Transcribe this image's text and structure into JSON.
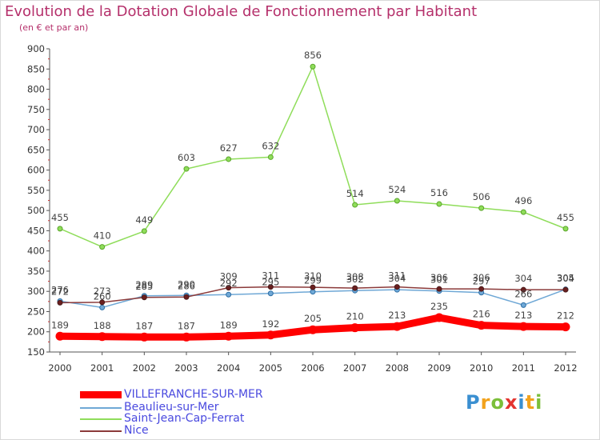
{
  "title": "Evolution de la Dotation Globale de Fonctionnement par Habitant",
  "subtitle": "(en € et par an)",
  "logo": {
    "text": "Proxiti",
    "letters": [
      {
        "ch": "P",
        "color": "#3a8fd1"
      },
      {
        "ch": "r",
        "color": "#f2a21c"
      },
      {
        "ch": "o",
        "color": "#7bbf3a"
      },
      {
        "ch": "x",
        "color": "#e3342f"
      },
      {
        "ch": "i",
        "color": "#3a8fd1"
      },
      {
        "ch": "t",
        "color": "#f2a21c"
      },
      {
        "ch": "i",
        "color": "#7bbf3a"
      }
    ]
  },
  "chart_data": {
    "type": "line",
    "title": "Evolution de la Dotation Globale de Fonctionnement par Habitant",
    "ylabel": "(en € et par an)",
    "xlabel": "",
    "ylim": [
      150,
      900
    ],
    "yticks": [
      150,
      200,
      250,
      300,
      350,
      400,
      450,
      500,
      550,
      600,
      650,
      700,
      750,
      800,
      850,
      900
    ],
    "categories": [
      "2000",
      "2001",
      "2002",
      "2003",
      "2004",
      "2005",
      "2006",
      "2007",
      "2008",
      "2009",
      "2010",
      "2011",
      "2012"
    ],
    "grid": false,
    "series": [
      {
        "name": "VILLEFRANCHE-SUR-MER",
        "color": "#ff0000",
        "values": [
          189,
          188,
          187,
          187,
          189,
          192,
          205,
          210,
          213,
          235,
          216,
          213,
          212
        ]
      },
      {
        "name": "Beaulieu-sur-Mer",
        "color": "#6fa8d6",
        "values": [
          276,
          260,
          289,
          290,
          292,
          295,
          299,
          302,
          304,
          301,
          297,
          266,
          305
        ]
      },
      {
        "name": "Saint-Jean-Cap-Ferrat",
        "color": "#8fdd5a",
        "values": [
          455,
          410,
          449,
          603,
          627,
          632,
          856,
          514,
          524,
          516,
          506,
          496,
          455
        ]
      },
      {
        "name": "Nice",
        "color": "#8b3a3a",
        "values": [
          272,
          273,
          285,
          286,
          309,
          311,
          310,
          308,
          311,
          306,
          306,
          304,
          304
        ]
      }
    ]
  }
}
